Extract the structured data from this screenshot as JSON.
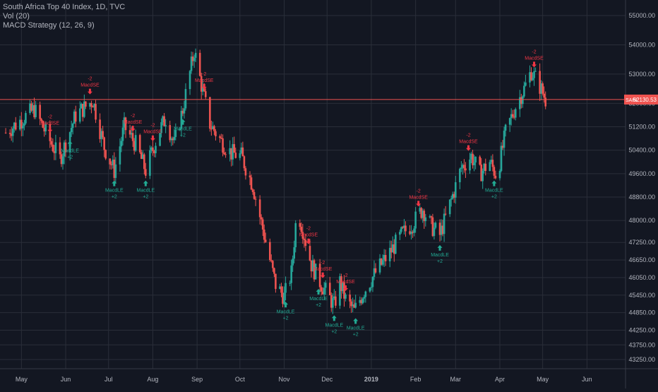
{
  "legend": {
    "title": "South Africa Top 40 Index, 1D, TVC",
    "volume": "Vol (20)",
    "strategy": "MACD Strategy (12, 26, 9)"
  },
  "colors": {
    "background": "#131722",
    "grid": "#2a2e39",
    "up": "#26a69a",
    "down": "#ef5350",
    "axis_text": "#b2b5be",
    "price_line": "#ef5350",
    "short_signal": "#f23645",
    "long_signal": "#22ab94"
  },
  "price_label": {
    "left": "SAHL",
    "right": "52130.53"
  },
  "chart_data": {
    "type": "candlestick",
    "y_axis": {
      "min": 42900,
      "max": 55250,
      "ticks": [
        "55000.00",
        "54000.00",
        "53000.00",
        "52000.00",
        "51200.00",
        "50400.00",
        "49600.00",
        "48800.00",
        "48000.00",
        "47250.00",
        "46650.00",
        "46050.00",
        "45450.00",
        "44850.00",
        "44250.00",
        "43750.00",
        "43250.00"
      ]
    },
    "x_axis": {
      "labels": [
        {
          "label": "May",
          "date": "2018-05-01"
        },
        {
          "label": "Jun",
          "date": "2018-06-01"
        },
        {
          "label": "Jul",
          "date": "2018-07-01"
        },
        {
          "label": "Aug",
          "date": "2018-08-01"
        },
        {
          "label": "Sep",
          "date": "2018-09-01"
        },
        {
          "label": "Oct",
          "date": "2018-10-01"
        },
        {
          "label": "Nov",
          "date": "2018-11-01"
        },
        {
          "label": "Dec",
          "date": "2018-12-01"
        },
        {
          "label": "2019",
          "date": "2019-01-01"
        },
        {
          "label": "Feb",
          "date": "2019-02-01"
        },
        {
          "label": "Mar",
          "date": "2019-03-01"
        },
        {
          "label": "Apr",
          "date": "2019-04-01"
        },
        {
          "label": "May",
          "date": "2019-05-01"
        },
        {
          "label": "Jun",
          "date": "2019-06-01"
        }
      ]
    },
    "close_path": [
      {
        "date": "2018-04-20",
        "close": 51000
      },
      {
        "date": "2018-05-10",
        "close": 51800
      },
      {
        "date": "2018-05-20",
        "close": 50800
      },
      {
        "date": "2018-05-28",
        "close": 50100
      },
      {
        "date": "2018-06-08",
        "close": 51600
      },
      {
        "date": "2018-06-20",
        "close": 52100
      },
      {
        "date": "2018-06-28",
        "close": 50500
      },
      {
        "date": "2018-07-05",
        "close": 49700
      },
      {
        "date": "2018-07-12",
        "close": 51200
      },
      {
        "date": "2018-07-20",
        "close": 50600
      },
      {
        "date": "2018-07-27",
        "close": 49700
      },
      {
        "date": "2018-08-05",
        "close": 51000
      },
      {
        "date": "2018-08-10",
        "close": 51500
      },
      {
        "date": "2018-08-16",
        "close": 50600
      },
      {
        "date": "2018-08-22",
        "close": 51800
      },
      {
        "date": "2018-08-26",
        "close": 52800
      },
      {
        "date": "2018-08-30",
        "close": 53800
      },
      {
        "date": "2018-09-05",
        "close": 52400
      },
      {
        "date": "2018-09-10",
        "close": 51300
      },
      {
        "date": "2018-09-18",
        "close": 50700
      },
      {
        "date": "2018-09-25",
        "close": 50300
      },
      {
        "date": "2018-10-02",
        "close": 50200
      },
      {
        "date": "2018-10-10",
        "close": 49200
      },
      {
        "date": "2018-10-18",
        "close": 47500
      },
      {
        "date": "2018-10-26",
        "close": 45800
      },
      {
        "date": "2018-11-01",
        "close": 45400
      },
      {
        "date": "2018-11-06",
        "close": 46200
      },
      {
        "date": "2018-11-10",
        "close": 48400
      },
      {
        "date": "2018-11-14",
        "close": 47700
      },
      {
        "date": "2018-11-20",
        "close": 46500
      },
      {
        "date": "2018-11-26",
        "close": 45900
      },
      {
        "date": "2018-12-01",
        "close": 45500
      },
      {
        "date": "2018-12-06",
        "close": 45100
      },
      {
        "date": "2018-12-10",
        "close": 45900
      },
      {
        "date": "2018-12-14",
        "close": 45300
      },
      {
        "date": "2018-12-20",
        "close": 44900
      },
      {
        "date": "2018-12-27",
        "close": 45600
      },
      {
        "date": "2019-01-05",
        "close": 46300
      },
      {
        "date": "2019-01-14",
        "close": 46900
      },
      {
        "date": "2019-01-22",
        "close": 47500
      },
      {
        "date": "2019-01-30",
        "close": 47900
      },
      {
        "date": "2019-02-06",
        "close": 48400
      },
      {
        "date": "2019-02-12",
        "close": 47800
      },
      {
        "date": "2019-02-18",
        "close": 47500
      },
      {
        "date": "2019-02-26",
        "close": 48700
      },
      {
        "date": "2019-03-05",
        "close": 49800
      },
      {
        "date": "2019-03-12",
        "close": 50200
      },
      {
        "date": "2019-03-18",
        "close": 49600
      },
      {
        "date": "2019-03-25",
        "close": 50000
      },
      {
        "date": "2019-03-30",
        "close": 49500
      },
      {
        "date": "2019-04-05",
        "close": 51000
      },
      {
        "date": "2019-04-12",
        "close": 51900
      },
      {
        "date": "2019-04-18",
        "close": 52500
      },
      {
        "date": "2019-04-23",
        "close": 53100
      },
      {
        "date": "2019-04-28",
        "close": 52700
      },
      {
        "date": "2019-05-03",
        "close": 52130
      }
    ],
    "signals": [
      {
        "type": "short",
        "date": "2018-05-21",
        "label": "MacdSE",
        "qty": "-2"
      },
      {
        "type": "long",
        "date": "2018-06-04",
        "label": "MacdLE",
        "qty": "+2"
      },
      {
        "type": "short",
        "date": "2018-06-18",
        "label": "MacdSE",
        "qty": "-2"
      },
      {
        "type": "long",
        "date": "2018-07-05",
        "label": "MacdLE",
        "qty": "+2"
      },
      {
        "type": "short",
        "date": "2018-07-18",
        "label": "MacdSE",
        "qty": "-2"
      },
      {
        "type": "long",
        "date": "2018-07-27",
        "label": "MacdLE",
        "qty": "+2"
      },
      {
        "type": "short",
        "date": "2018-08-01",
        "label": "MacdSE",
        "qty": "-2"
      },
      {
        "type": "long",
        "date": "2018-08-22",
        "label": "MacdLE",
        "qty": "+2"
      },
      {
        "type": "short",
        "date": "2018-09-06",
        "label": "MacdSE",
        "qty": "-2"
      },
      {
        "type": "long",
        "date": "2018-11-02",
        "label": "MacdLE",
        "qty": "+2"
      },
      {
        "type": "short",
        "date": "2018-11-18",
        "label": "MacdSE",
        "qty": "-2"
      },
      {
        "type": "long",
        "date": "2018-11-25",
        "label": "MacdLE",
        "qty": "+2"
      },
      {
        "type": "short",
        "date": "2018-11-28",
        "label": "MacdSE",
        "qty": "-2"
      },
      {
        "type": "long",
        "date": "2018-12-06",
        "label": "MacdLE",
        "qty": "+2"
      },
      {
        "type": "short",
        "date": "2018-12-14",
        "label": "MacdSE",
        "qty": "-2"
      },
      {
        "type": "long",
        "date": "2018-12-21",
        "label": "MacdLE",
        "qty": "+2"
      },
      {
        "type": "short",
        "date": "2019-02-03",
        "label": "MacdSE",
        "qty": "-2"
      },
      {
        "type": "long",
        "date": "2019-02-18",
        "label": "MacdLE",
        "qty": "+2"
      },
      {
        "type": "short",
        "date": "2019-03-10",
        "label": "MacdSE",
        "qty": "-2"
      },
      {
        "type": "long",
        "date": "2019-03-28",
        "label": "MacdLE",
        "qty": "+2"
      },
      {
        "type": "short",
        "date": "2019-04-25",
        "label": "MacdSE",
        "qty": "-2"
      }
    ]
  }
}
